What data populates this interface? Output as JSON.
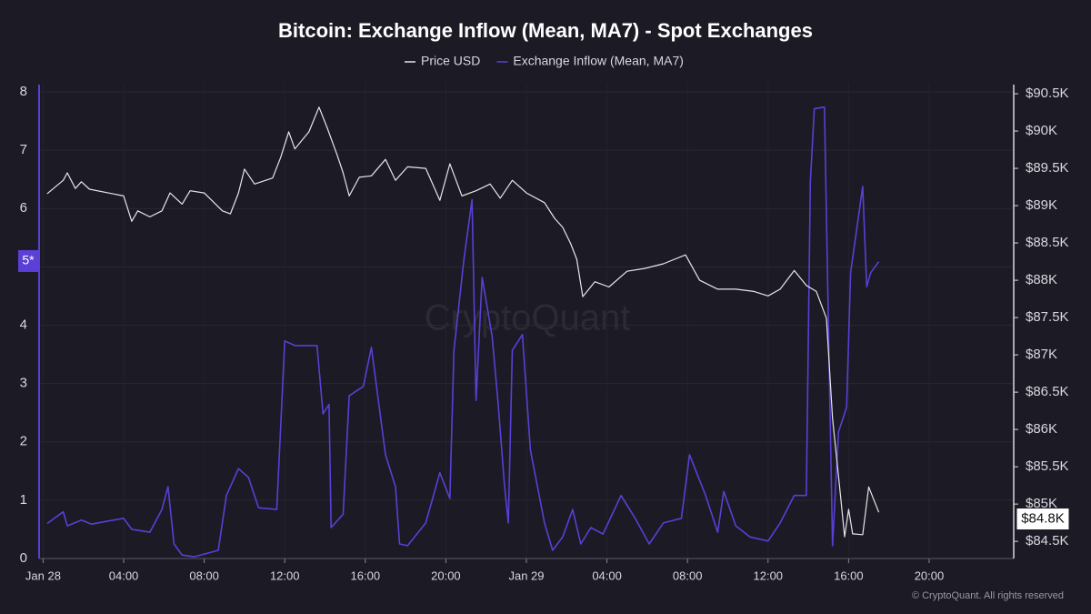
{
  "chart_data": {
    "type": "line",
    "title": "Bitcoin: Exchange Inflow (Mean, MA7) - Spot Exchanges",
    "watermark": "CryptoQuant",
    "footer": "© CryptoQuant. All rights reserved",
    "xlim": [
      -0.2,
      48.2
    ],
    "xticks": [
      {
        "value": 0,
        "label": "Jan 28"
      },
      {
        "value": 4,
        "label": "04:00"
      },
      {
        "value": 8,
        "label": "08:00"
      },
      {
        "value": 12,
        "label": "12:00"
      },
      {
        "value": 16,
        "label": "16:00"
      },
      {
        "value": 20,
        "label": "20:00"
      },
      {
        "value": 24,
        "label": "Jan 29"
      },
      {
        "value": 28,
        "label": "04:00"
      },
      {
        "value": 32,
        "label": "08:00"
      },
      {
        "value": 36,
        "label": "12:00"
      },
      {
        "value": 40,
        "label": "16:00"
      },
      {
        "value": 44,
        "label": "20:00"
      }
    ],
    "ylim": [
      0,
      8
    ],
    "yticks": [
      0,
      1,
      2,
      3,
      4,
      5,
      6,
      7,
      8
    ],
    "y2lim": [
      84270,
      90525
    ],
    "y2ticks": [
      {
        "value": 84500,
        "label": "$84.5K"
      },
      {
        "value": 85000,
        "label": "$85K"
      },
      {
        "value": 85500,
        "label": "$85.5K"
      },
      {
        "value": 86000,
        "label": "$86K"
      },
      {
        "value": 86500,
        "label": "$86.5K"
      },
      {
        "value": 87000,
        "label": "$87K"
      },
      {
        "value": 87500,
        "label": "$87.5K"
      },
      {
        "value": 88000,
        "label": "$88K"
      },
      {
        "value": 88500,
        "label": "$88.5K"
      },
      {
        "value": 89000,
        "label": "$89K"
      },
      {
        "value": 89500,
        "label": "$89.5K"
      },
      {
        "value": 90000,
        "label": "$90K"
      },
      {
        "value": 90500,
        "label": "$90.5K"
      }
    ],
    "grid": true,
    "legend": "top",
    "annotations": [
      {
        "text": "5*",
        "value": 5.1,
        "axis": "y"
      },
      {
        "text": "$84.8K",
        "value": 84800,
        "axis": "y2"
      }
    ],
    "series": [
      {
        "name": "Price USD",
        "color": "#e6e6ea",
        "axis": "y2",
        "x": [
          0.2,
          1.0,
          1.2,
          1.6,
          1.9,
          2.3,
          4.0,
          4.4,
          4.7,
          5.3,
          5.9,
          6.3,
          6.9,
          7.3,
          8.0,
          8.9,
          9.3,
          9.7,
          10.0,
          10.5,
          11.4,
          11.8,
          12.2,
          12.5,
          13.2,
          13.7,
          14.1,
          14.6,
          14.9,
          15.2,
          15.7,
          16.3,
          17.0,
          17.5,
          18.1,
          19.0,
          19.7,
          20.2,
          20.8,
          21.5,
          22.2,
          22.7,
          23.3,
          24.0,
          24.9,
          25.4,
          25.8,
          26.2,
          26.5,
          26.8,
          27.4,
          28.1,
          29.0,
          29.9,
          30.8,
          31.9,
          32.6,
          33.5,
          34.4,
          35.3,
          36.0,
          36.6,
          37.3,
          37.9,
          38.4,
          38.9,
          39.2,
          39.6,
          39.8,
          40.0,
          40.2,
          40.7,
          41.0,
          41.5
        ],
        "values": [
          89160,
          89340,
          89440,
          89230,
          89320,
          89220,
          89130,
          88790,
          88930,
          88850,
          88930,
          89170,
          89020,
          89200,
          89170,
          88930,
          88890,
          89170,
          89490,
          89290,
          89370,
          89650,
          89990,
          89760,
          89990,
          90320,
          90050,
          89680,
          89440,
          89130,
          89380,
          89400,
          89620,
          89340,
          89520,
          89500,
          89070,
          89560,
          89130,
          89200,
          89290,
          89100,
          89340,
          89170,
          89040,
          88830,
          88710,
          88490,
          88280,
          87780,
          87980,
          87910,
          88120,
          88160,
          88220,
          88340,
          88000,
          87880,
          87880,
          87850,
          87790,
          87880,
          88130,
          87930,
          87850,
          87490,
          86150,
          85110,
          84560,
          84930,
          84600,
          84590,
          85230,
          84890
        ]
      },
      {
        "name": "Exchange Inflow (Mean, MA7)",
        "color": "#5b3fd6",
        "axis": "y",
        "x": [
          0.2,
          1.0,
          1.2,
          1.9,
          2.4,
          4.0,
          4.4,
          5.3,
          5.9,
          6.2,
          6.5,
          6.9,
          7.5,
          8.7,
          9.1,
          9.7,
          10.2,
          10.7,
          11.6,
          12.0,
          12.5,
          13.6,
          13.9,
          14.2,
          14.3,
          14.9,
          15.2,
          15.9,
          16.3,
          17.0,
          17.5,
          17.7,
          18.1,
          19.0,
          19.7,
          20.2,
          20.4,
          20.9,
          21.3,
          21.5,
          21.8,
          22.3,
          22.6,
          22.9,
          23.1,
          23.3,
          23.8,
          24.2,
          24.9,
          25.3,
          25.8,
          26.3,
          26.7,
          27.2,
          27.8,
          28.7,
          29.4,
          30.1,
          30.8,
          31.7,
          32.1,
          32.9,
          33.5,
          33.8,
          34.4,
          35.1,
          36.0,
          36.6,
          37.3,
          37.9,
          38.1,
          38.3,
          38.8,
          39.2,
          39.5,
          39.9,
          40.1,
          40.7,
          40.9,
          41.1,
          41.5
        ],
        "values": [
          0.6,
          0.8,
          0.56,
          0.66,
          0.59,
          0.69,
          0.5,
          0.45,
          0.84,
          1.23,
          0.25,
          0.06,
          0.03,
          0.14,
          1.08,
          1.54,
          1.39,
          0.87,
          0.84,
          3.73,
          3.65,
          3.65,
          2.48,
          2.64,
          0.53,
          0.76,
          2.79,
          2.95,
          3.62,
          1.78,
          1.23,
          0.25,
          0.22,
          0.61,
          1.47,
          1.03,
          3.57,
          5.13,
          6.15,
          2.71,
          4.82,
          3.81,
          2.64,
          1.31,
          0.61,
          3.57,
          3.84,
          1.86,
          0.61,
          0.14,
          0.37,
          0.84,
          0.25,
          0.53,
          0.42,
          1.08,
          0.69,
          0.25,
          0.61,
          0.69,
          1.78,
          1.08,
          0.45,
          1.15,
          0.56,
          0.37,
          0.3,
          0.61,
          1.08,
          1.08,
          6.46,
          7.71,
          7.74,
          0.22,
          2.17,
          2.59,
          4.9,
          6.38,
          4.66,
          4.9,
          5.09
        ]
      }
    ]
  }
}
